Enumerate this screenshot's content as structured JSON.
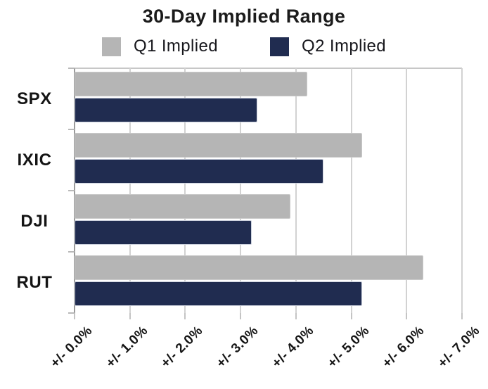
{
  "chart_data": {
    "type": "bar",
    "orientation": "horizontal",
    "title": "30-Day Implied Range",
    "categories": [
      "SPX",
      "IXIC",
      "DJI",
      "RUT"
    ],
    "series": [
      {
        "name": "Q1 Implied",
        "color": "#b5b5b5",
        "values": [
          4.2,
          5.2,
          3.9,
          6.3
        ]
      },
      {
        "name": "Q2 Implied",
        "color": "#202c50",
        "values": [
          3.3,
          4.5,
          3.2,
          5.2
        ]
      }
    ],
    "x_axis": {
      "min": 0,
      "max": 7,
      "step": 1,
      "tick_labels": [
        "+/- 0.0%",
        "+/- 1.0%",
        "+/- 2.0%",
        "+/- 3.0%",
        "+/- 4.0%",
        "+/- 5.0%",
        "+/- 6.0%",
        "+/- 7.0%"
      ]
    },
    "legend_position": "top",
    "grid": true
  },
  "colors": {
    "background": "#ffffff",
    "text": "#1b1b1b",
    "gridline": "#d2d2d2",
    "axis_line": "#9a9a9a",
    "q1_bar": "#b5b5b5",
    "q2_bar": "#202c50"
  }
}
